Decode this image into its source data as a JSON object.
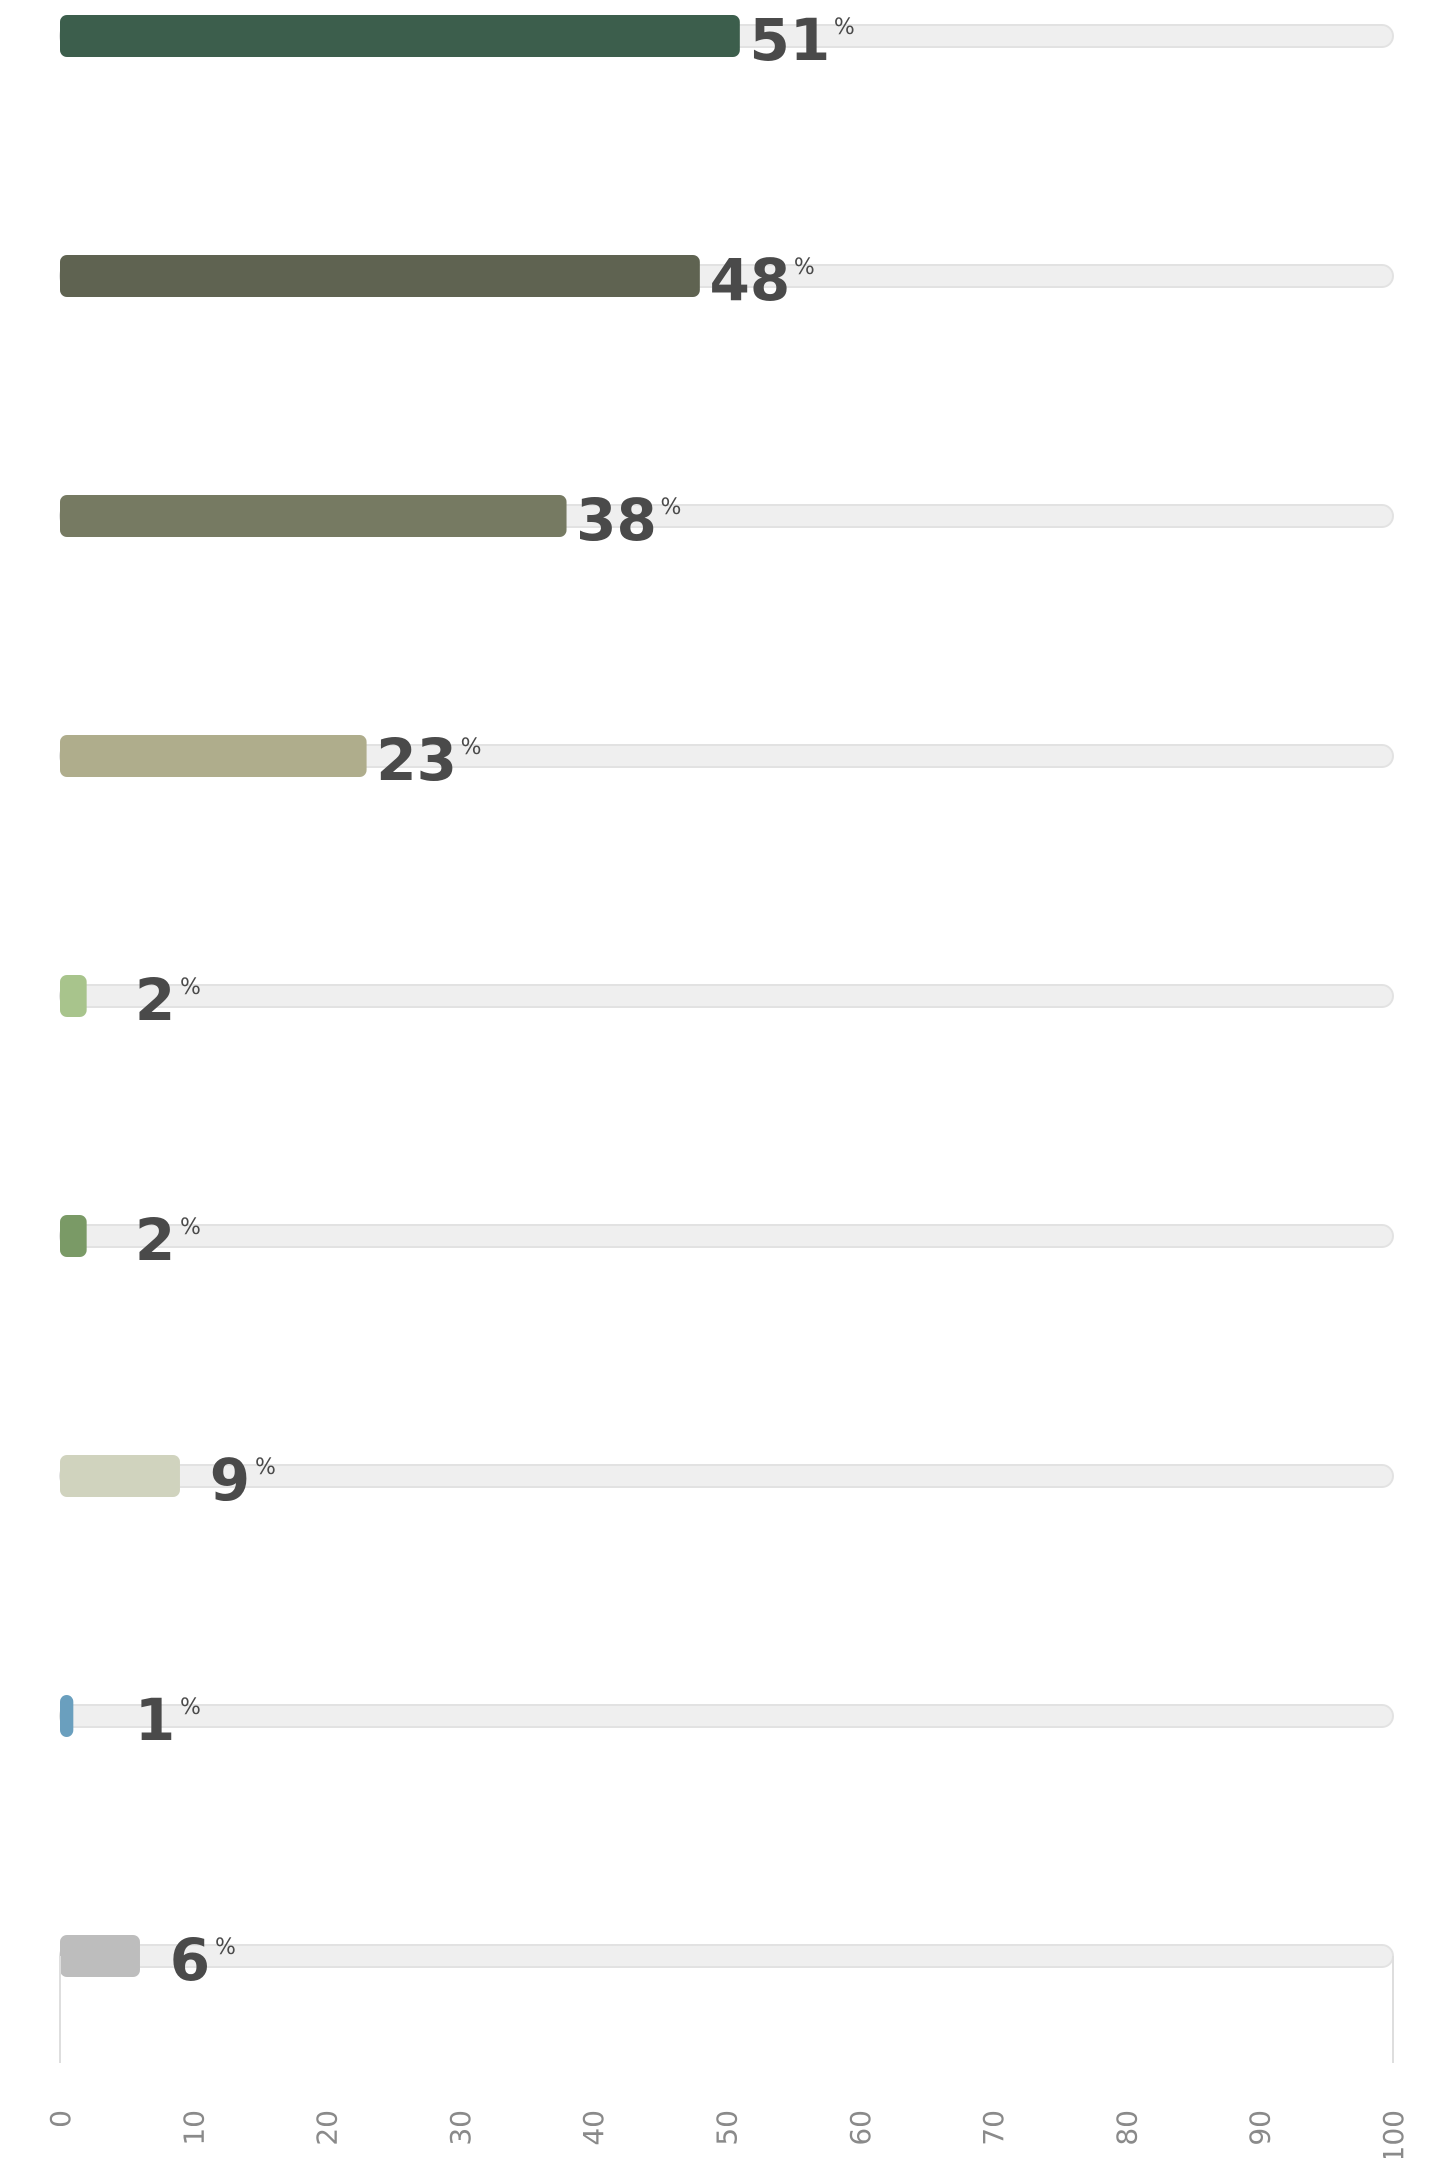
{
  "chart_data": {
    "type": "bar",
    "orientation": "horizontal",
    "values": [
      51,
      48,
      38,
      23,
      2,
      2,
      9,
      1,
      6
    ],
    "colors": [
      "#3c5e4c",
      "#5f6351",
      "#767a62",
      "#afad8c",
      "#a8c48c",
      "#7a9a66",
      "#d0d3be",
      "#6a9fbe",
      "#bdbdbd"
    ],
    "value_suffix": "%",
    "xlim": [
      0,
      100
    ],
    "x_ticks": [
      0,
      10,
      20,
      30,
      40,
      50,
      60,
      70,
      80,
      90,
      100
    ],
    "grid": false,
    "track_color": "#efefef"
  }
}
